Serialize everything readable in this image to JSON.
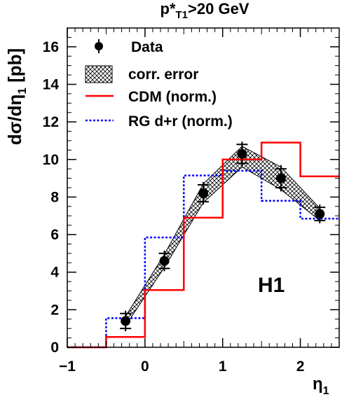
{
  "chart_data": {
    "type": "line",
    "title": "p*T1>20 GeV",
    "title_parts": {
      "base": "p",
      "star": "*",
      "sub": "T1",
      "rest": ">20 GeV"
    },
    "xlabel": "η1",
    "xlabel_parts": {
      "base": "η",
      "sub": "1"
    },
    "ylabel": "dσ/dη1 [pb]",
    "ylabel_parts": {
      "pre": "dσ/dη",
      "sub": "1",
      "post": " [pb]"
    },
    "xlim": [
      -1,
      2.5
    ],
    "ylim": [
      0,
      17
    ],
    "xticks": [
      -1,
      0,
      1,
      2
    ],
    "xtick_labels": [
      "−1",
      "0",
      "1",
      "2"
    ],
    "yticks": [
      0,
      2,
      4,
      6,
      8,
      10,
      12,
      14,
      16
    ],
    "ytick_labels": [
      "0",
      "2",
      "4",
      "6",
      "8",
      "10",
      "12",
      "14",
      "16"
    ],
    "annotation": "H1",
    "legend_position": "top-left",
    "legend": {
      "data": "Data",
      "corr": "corr. error",
      "cdm": "CDM (norm.)",
      "rg": "RG d+r (norm.)"
    },
    "data_points": {
      "name": "Data",
      "x": [
        -0.25,
        0.25,
        0.75,
        1.25,
        1.75,
        2.25
      ],
      "y": [
        1.4,
        4.6,
        8.2,
        10.3,
        9.0,
        7.1
      ],
      "stat_err": [
        0.4,
        0.4,
        0.45,
        0.5,
        0.5,
        0.35
      ],
      "total_err": [
        0.55,
        0.55,
        0.6,
        0.65,
        0.7,
        0.5
      ]
    },
    "corr_error_band": {
      "name": "corr. error",
      "x": [
        -0.25,
        0.25,
        0.75,
        1.25,
        1.75,
        2.25
      ],
      "upper": [
        1.65,
        4.95,
        8.7,
        10.7,
        9.6,
        7.4
      ],
      "lower": [
        1.15,
        4.25,
        7.7,
        9.6,
        8.4,
        6.75
      ]
    },
    "cdm": {
      "name": "CDM (norm.)",
      "edges": [
        -1,
        -0.5,
        0,
        0.5,
        1,
        1.5,
        2,
        2.5
      ],
      "values": [
        0,
        0.55,
        3.05,
        6.9,
        10.0,
        10.9,
        9.1
      ]
    },
    "rg": {
      "name": "RG d+r (norm.)",
      "edges": [
        -1,
        -0.5,
        0,
        0.5,
        1,
        1.5,
        2,
        2.5
      ],
      "values": [
        0,
        1.55,
        5.85,
        9.15,
        9.4,
        7.8,
        6.85
      ]
    },
    "colors": {
      "cdm": "#ff0000",
      "rg": "#0000ff",
      "data": "#000000"
    }
  }
}
